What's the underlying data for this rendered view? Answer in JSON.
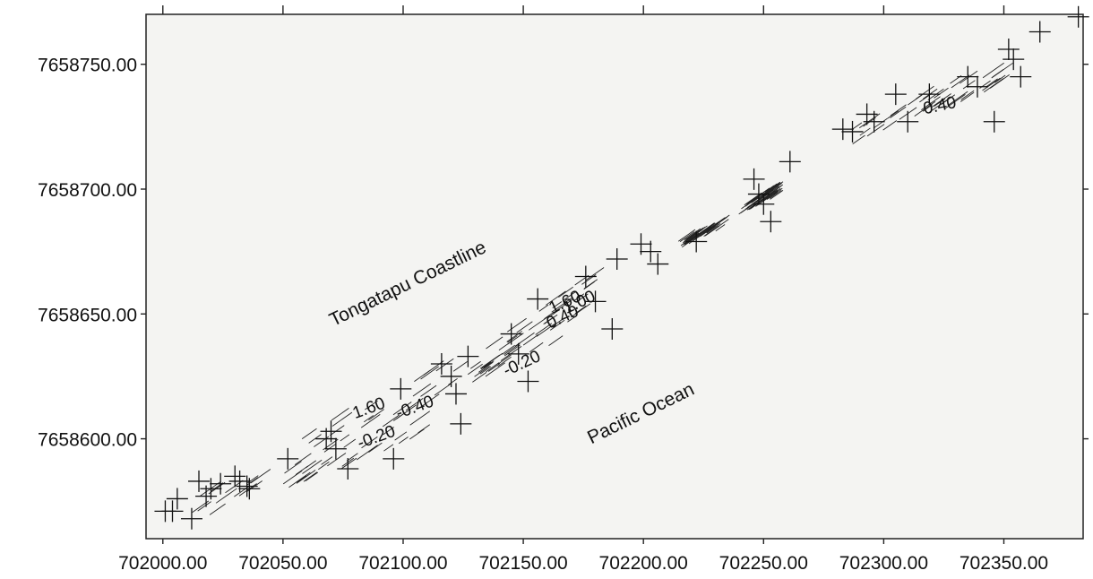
{
  "map": {
    "annotations": [
      {
        "text": "Tongatapu Coastline",
        "x": 702103,
        "y": 7658660,
        "angle": -26
      },
      {
        "text": "Pacific Ocean",
        "x": 702200,
        "y": 7658608,
        "angle": -26
      }
    ],
    "contour_labels": [
      {
        "text": "1.60",
        "x": 702080,
        "y": 7658608,
        "angle": -20
      },
      {
        "text": "-0.40",
        "x": 702098,
        "y": 7658608,
        "angle": -20
      },
      {
        "text": "-0.20",
        "x": 702082,
        "y": 7658596,
        "angle": -20
      },
      {
        "text": "1.60",
        "x": 702162,
        "y": 7658650,
        "angle": -25
      },
      {
        "text": "1.00",
        "x": 702168,
        "y": 7658650,
        "angle": -25
      },
      {
        "text": "0.40",
        "x": 702161,
        "y": 7658644,
        "angle": -25
      },
      {
        "text": "-0.20",
        "x": 702143,
        "y": 7658625,
        "angle": -25
      },
      {
        "text": "0.40",
        "x": 702317,
        "y": 7658730,
        "angle": -12
      }
    ],
    "survey_points": [
      [
        702001,
        7658571
      ],
      [
        702004,
        7658571
      ],
      [
        702006,
        7658576
      ],
      [
        702012,
        7658568
      ],
      [
        702015,
        7658583
      ],
      [
        702020,
        7658580
      ],
      [
        702018,
        7658577
      ],
      [
        702024,
        7658582
      ],
      [
        702030,
        7658585
      ],
      [
        702032,
        7658583
      ],
      [
        702035,
        7658581
      ],
      [
        702036,
        7658580
      ],
      [
        702052,
        7658592
      ],
      [
        702068,
        7658600
      ],
      [
        702070,
        7658603
      ],
      [
        702072,
        7658596
      ],
      [
        702077,
        7658588
      ],
      [
        702096,
        7658592
      ],
      [
        702099,
        7658620
      ],
      [
        702116,
        7658630
      ],
      [
        702120,
        7658625
      ],
      [
        702122,
        7658618
      ],
      [
        702124,
        7658606
      ],
      [
        702127,
        7658633
      ],
      [
        702145,
        7658642
      ],
      [
        702148,
        7658634
      ],
      [
        702152,
        7658623
      ],
      [
        702156,
        7658656
      ],
      [
        702176,
        7658665
      ],
      [
        702180,
        7658655
      ],
      [
        702187,
        7658644
      ],
      [
        702189,
        7658672
      ],
      [
        702199,
        7658678
      ],
      [
        702203,
        7658675
      ],
      [
        702206,
        7658670
      ],
      [
        702222,
        7658679
      ],
      [
        702246,
        7658704
      ],
      [
        702248,
        7658698
      ],
      [
        702250,
        7658694
      ],
      [
        702253,
        7658687
      ],
      [
        702261,
        7658711
      ],
      [
        702283,
        7658724
      ],
      [
        702287,
        7658723
      ],
      [
        702293,
        7658730
      ],
      [
        702296,
        7658727
      ],
      [
        702305,
        7658738
      ],
      [
        702310,
        7658727
      ],
      [
        702319,
        7658738
      ],
      [
        702335,
        7658745
      ],
      [
        702339,
        7658741
      ],
      [
        702346,
        7658727
      ],
      [
        702352,
        7658756
      ],
      [
        702354,
        7658752
      ],
      [
        702357,
        7658745
      ],
      [
        702365,
        7658763
      ],
      [
        702381,
        7658769
      ]
    ]
  },
  "axes": {
    "x": {
      "range": [
        701993,
        702383
      ],
      "ticks": [
        702000,
        702050,
        702100,
        702150,
        702200,
        702250,
        702300,
        702350
      ],
      "tick_labels": [
        "702000.00",
        "702050.00",
        "702100.00",
        "702150.00",
        "702200.00",
        "702250.00",
        "702300.00",
        "702350.00"
      ]
    },
    "y": {
      "range": [
        7658560,
        7658770
      ],
      "ticks": [
        7658600,
        7658650,
        7658700,
        7658750
      ],
      "tick_labels": [
        "7658600.00",
        "7658650.00",
        "7658700.00",
        "7658750.00"
      ]
    }
  }
}
